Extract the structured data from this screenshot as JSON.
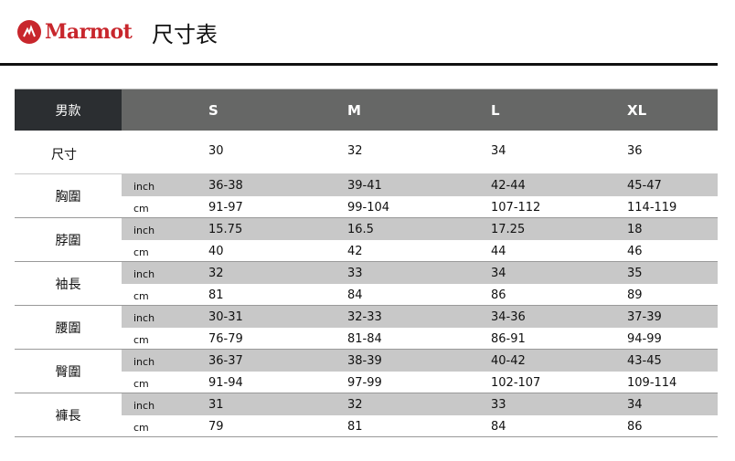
{
  "brand": {
    "name": "Marmot",
    "title": "尺寸表",
    "color": "#c8262c"
  },
  "table": {
    "corner": "男款",
    "sizes": [
      "S",
      "M",
      "L",
      "XL"
    ],
    "size_row": {
      "label": "尺寸",
      "values": [
        "30",
        "32",
        "34",
        "36"
      ]
    },
    "groups": [
      {
        "label": "胸圍",
        "inch_unit": "inch",
        "cm_unit": "cm",
        "inch": [
          "36-38",
          "39-41",
          "42-44",
          "45-47"
        ],
        "cm": [
          "91-97",
          "99-104",
          "107-112",
          "114-119"
        ]
      },
      {
        "label": "脖圍",
        "inch_unit": "inch",
        "cm_unit": "cm",
        "inch": [
          "15.75",
          "16.5",
          "17.25",
          "18"
        ],
        "cm": [
          "40",
          "42",
          "44",
          "46"
        ]
      },
      {
        "label": "袖長",
        "inch_unit": "inch",
        "cm_unit": "cm",
        "inch": [
          "32",
          "33",
          "34",
          "35"
        ],
        "cm": [
          "81",
          "84",
          "86",
          "89"
        ]
      },
      {
        "label": "腰圍",
        "inch_unit": "inch",
        "cm_unit": "cm",
        "inch": [
          "30-31",
          "32-33",
          "34-36",
          "37-39"
        ],
        "cm": [
          "76-79",
          "81-84",
          "86-91",
          "94-99"
        ]
      },
      {
        "label": "臀圍",
        "inch_unit": "inch",
        "cm_unit": "cm",
        "inch": [
          "36-37",
          "38-39",
          "40-42",
          "43-45"
        ],
        "cm": [
          "91-94",
          "97-99",
          "102-107",
          "109-114"
        ]
      },
      {
        "label": "褲長",
        "inch_unit": "inch",
        "cm_unit": "cm",
        "inch": [
          "31",
          "32",
          "33",
          "34"
        ],
        "cm": [
          "79",
          "81",
          "84",
          "86"
        ]
      }
    ]
  }
}
